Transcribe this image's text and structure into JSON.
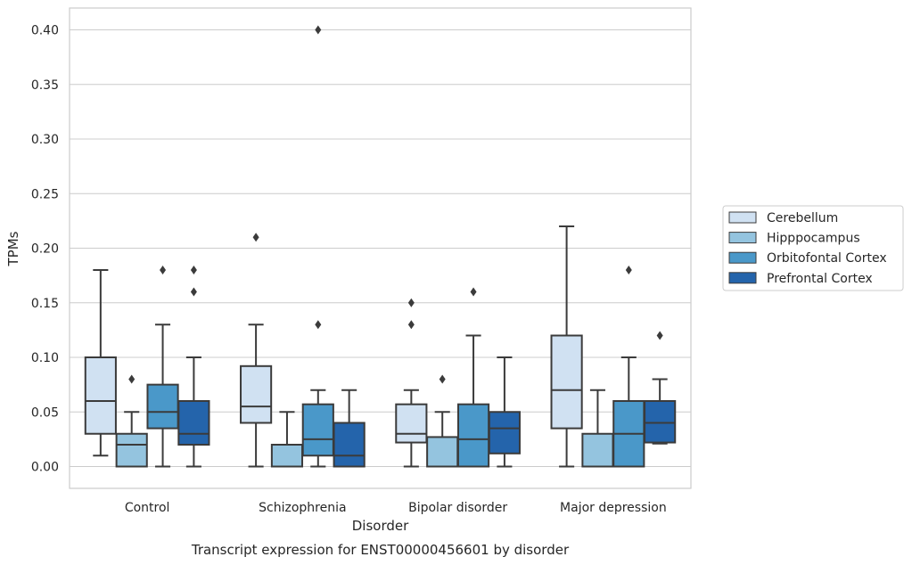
{
  "chart_data": {
    "type": "box",
    "xlabel": "Disorder",
    "ylabel": "TPMs",
    "caption": "Transcript expression for ENST00000456601 by disorder",
    "ylim": [
      -0.02,
      0.42
    ],
    "yticks": [
      "0.00",
      "0.05",
      "0.10",
      "0.15",
      "0.20",
      "0.25",
      "0.30",
      "0.35",
      "0.40"
    ],
    "grid": "horizontal",
    "legend_position": "right",
    "categories": [
      "Control",
      "Schizophrenia",
      "Bipolar disorder",
      "Major depression"
    ],
    "series": [
      {
        "name": "Cerebellum",
        "color": "#d0e1f2",
        "boxes": [
          {
            "whislo": 0.01,
            "q1": 0.03,
            "med": 0.06,
            "q3": 0.1,
            "whishi": 0.18,
            "fliers": []
          },
          {
            "whislo": 0.0,
            "q1": 0.04,
            "med": 0.055,
            "q3": 0.092,
            "whishi": 0.13,
            "fliers": [
              0.21
            ]
          },
          {
            "whislo": 0.0,
            "q1": 0.022,
            "med": 0.03,
            "q3": 0.057,
            "whishi": 0.07,
            "fliers": [
              0.13,
              0.15
            ]
          },
          {
            "whislo": 0.0,
            "q1": 0.035,
            "med": 0.07,
            "q3": 0.12,
            "whishi": 0.22,
            "fliers": []
          }
        ]
      },
      {
        "name": "Hipppocampus",
        "color": "#94c4df",
        "boxes": [
          {
            "whislo": 0.0,
            "q1": 0.0,
            "med": 0.02,
            "q3": 0.03,
            "whishi": 0.05,
            "fliers": [
              0.08
            ]
          },
          {
            "whislo": 0.0,
            "q1": 0.0,
            "med": 0.0,
            "q3": 0.02,
            "whishi": 0.05,
            "fliers": []
          },
          {
            "whislo": 0.0,
            "q1": 0.0,
            "med": 0.0,
            "q3": 0.027,
            "whishi": 0.05,
            "fliers": [
              0.08
            ]
          },
          {
            "whislo": 0.0,
            "q1": 0.0,
            "med": 0.0,
            "q3": 0.03,
            "whishi": 0.07,
            "fliers": []
          }
        ]
      },
      {
        "name": "Orbitofontal Cortex",
        "color": "#4a98c9",
        "boxes": [
          {
            "whislo": 0.0,
            "q1": 0.035,
            "med": 0.05,
            "q3": 0.075,
            "whishi": 0.13,
            "fliers": [
              0.18
            ]
          },
          {
            "whislo": 0.0,
            "q1": 0.01,
            "med": 0.025,
            "q3": 0.057,
            "whishi": 0.07,
            "fliers": [
              0.13,
              0.4
            ]
          },
          {
            "whislo": 0.0,
            "q1": 0.0,
            "med": 0.025,
            "q3": 0.057,
            "whishi": 0.12,
            "fliers": [
              0.16
            ]
          },
          {
            "whislo": 0.0,
            "q1": 0.0,
            "med": 0.03,
            "q3": 0.06,
            "whishi": 0.1,
            "fliers": [
              0.18
            ]
          }
        ]
      },
      {
        "name": "Prefrontal Cortex",
        "color": "#2464ab",
        "boxes": [
          {
            "whislo": 0.0,
            "q1": 0.02,
            "med": 0.03,
            "q3": 0.06,
            "whishi": 0.1,
            "fliers": [
              0.16,
              0.18
            ]
          },
          {
            "whislo": 0.0,
            "q1": 0.0,
            "med": 0.01,
            "q3": 0.04,
            "whishi": 0.07,
            "fliers": []
          },
          {
            "whislo": 0.0,
            "q1": 0.012,
            "med": 0.035,
            "q3": 0.05,
            "whishi": 0.1,
            "fliers": []
          },
          {
            "whislo": 0.021,
            "q1": 0.022,
            "med": 0.04,
            "q3": 0.06,
            "whishi": 0.08,
            "fliers": [
              0.12
            ]
          }
        ]
      }
    ]
  }
}
